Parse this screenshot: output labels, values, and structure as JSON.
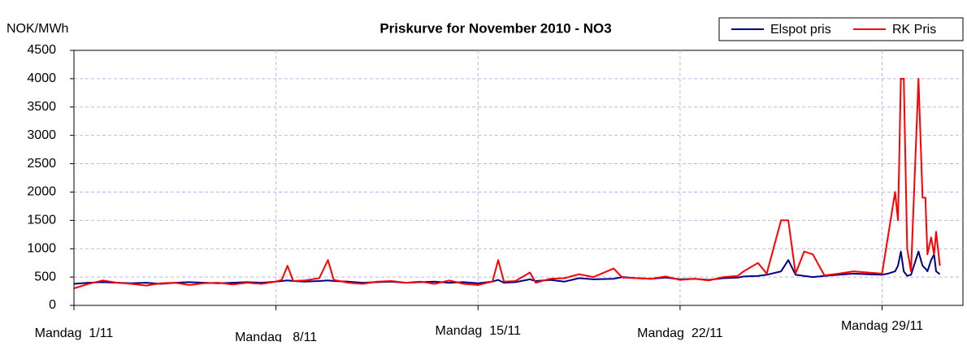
{
  "chart_data": {
    "type": "line",
    "title": "Priskurve for November 2010 - NO3",
    "y_label": "NOK/MWh",
    "legend": "upper right",
    "grid": true,
    "xlim": [
      0,
      30.8
    ],
    "ylim": [
      0,
      4500
    ],
    "yticks": [
      0,
      500,
      1000,
      1500,
      2000,
      2500,
      3000,
      3500,
      4000,
      4500
    ],
    "xticks": [
      {
        "value": 0,
        "label": "Mandag  1/11"
      },
      {
        "value": 7,
        "label": "Mandag   8/11"
      },
      {
        "value": 14,
        "label": "Mandag  15/11"
      },
      {
        "value": 21,
        "label": "Mandag  22/11"
      },
      {
        "value": 28,
        "label": "Mandag 29/11"
      }
    ],
    "x": [
      0,
      0.5,
      1,
      1.5,
      2,
      2.5,
      3,
      3.5,
      4,
      4.5,
      5,
      5.5,
      6,
      6.5,
      7,
      7.2,
      7.4,
      7.6,
      8,
      8.5,
      8.8,
      9,
      9.5,
      10,
      10.5,
      11,
      11.5,
      12,
      12.5,
      13,
      13.5,
      14,
      14.5,
      14.7,
      14.9,
      15.3,
      15.8,
      16,
      16.5,
      17,
      17.5,
      18,
      18.7,
      19,
      19.5,
      20,
      20.5,
      21,
      21.5,
      22,
      22.5,
      23,
      23.2,
      23.7,
      24,
      24.5,
      24.75,
      25,
      25.3,
      25.6,
      26,
      26.5,
      27,
      27.5,
      28,
      28.2,
      28.45,
      28.55,
      28.65,
      28.75,
      28.87,
      29,
      29.26,
      29.4,
      29.5,
      29.57,
      29.7,
      29.8,
      29.87,
      30
    ],
    "series": [
      {
        "name": "Elspot pris",
        "color": "#000080",
        "values": [
          380,
          400,
          410,
          400,
          390,
          400,
          380,
          400,
          410,
          400,
          390,
          400,
          410,
          400,
          420,
          430,
          440,
          430,
          420,
          430,
          440,
          430,
          420,
          400,
          410,
          420,
          400,
          410,
          420,
          400,
          410,
          390,
          420,
          450,
          400,
          410,
          460,
          430,
          450,
          420,
          480,
          460,
          470,
          500,
          480,
          470,
          490,
          460,
          470,
          450,
          480,
          490,
          510,
          520,
          540,
          600,
          800,
          540,
          520,
          500,
          520,
          540,
          560,
          550,
          540,
          560,
          600,
          700,
          950,
          600,
          520,
          540,
          950,
          700,
          650,
          600,
          800,
          900,
          600,
          550
        ]
      },
      {
        "name": "RK Pris",
        "color": "#ff0000",
        "values": [
          300,
          380,
          440,
          400,
          380,
          350,
          390,
          400,
          360,
          390,
          400,
          370,
          400,
          380,
          420,
          450,
          700,
          430,
          440,
          480,
          800,
          450,
          400,
          380,
          420,
          430,
          400,
          420,
          380,
          440,
          380,
          360,
          420,
          800,
          420,
          430,
          580,
          400,
          470,
          480,
          550,
          500,
          650,
          490,
          480,
          470,
          510,
          450,
          470,
          440,
          500,
          520,
          600,
          750,
          560,
          1500,
          1500,
          560,
          950,
          900,
          530,
          560,
          600,
          580,
          560,
          1200,
          2000,
          1500,
          4000,
          4000,
          1000,
          600,
          4000,
          1900,
          1900,
          900,
          1200,
          900,
          1300,
          700
        ]
      }
    ]
  }
}
